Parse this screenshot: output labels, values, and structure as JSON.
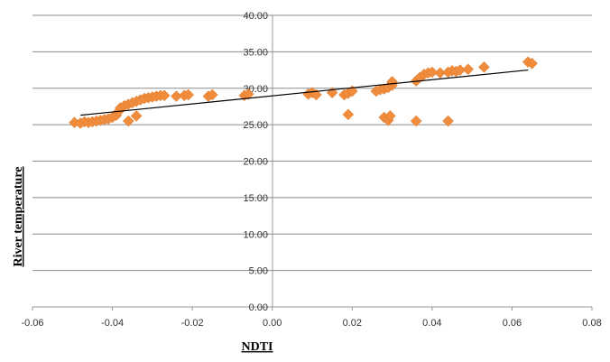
{
  "chart_data": {
    "type": "scatter",
    "xlabel": "NDTI",
    "ylabel": "River temperature",
    "xlim": [
      -0.06,
      0.08
    ],
    "ylim": [
      0,
      40
    ],
    "x_ticks": [
      "-0.06",
      "-0.04",
      "-0.02",
      "0.00",
      "0.02",
      "0.04",
      "0.06",
      "0.08"
    ],
    "y_ticks": [
      "0.00",
      "5.00",
      "10.00",
      "15.00",
      "20.00",
      "25.00",
      "30.00",
      "35.00",
      "40.00"
    ],
    "grid": "horizontal",
    "marker_color": "#f08c3c",
    "trendline_color": "#000000",
    "trendline": {
      "x": [
        -0.048,
        0.064
      ],
      "y": [
        26.3,
        32.5
      ]
    },
    "points": [
      {
        "x": -0.0495,
        "y": 25.3
      },
      {
        "x": -0.048,
        "y": 25.2
      },
      {
        "x": -0.047,
        "y": 25.4
      },
      {
        "x": -0.046,
        "y": 25.3
      },
      {
        "x": -0.045,
        "y": 25.4
      },
      {
        "x": -0.044,
        "y": 25.5
      },
      {
        "x": -0.043,
        "y": 25.6
      },
      {
        "x": -0.042,
        "y": 25.7
      },
      {
        "x": -0.041,
        "y": 25.8
      },
      {
        "x": -0.04,
        "y": 26.0
      },
      {
        "x": -0.039,
        "y": 26.3
      },
      {
        "x": -0.0385,
        "y": 26.8
      },
      {
        "x": -0.038,
        "y": 27.3
      },
      {
        "x": -0.037,
        "y": 27.6
      },
      {
        "x": -0.036,
        "y": 27.8
      },
      {
        "x": -0.035,
        "y": 28.0
      },
      {
        "x": -0.034,
        "y": 28.2
      },
      {
        "x": -0.033,
        "y": 28.4
      },
      {
        "x": -0.032,
        "y": 28.6
      },
      {
        "x": -0.031,
        "y": 28.7
      },
      {
        "x": -0.03,
        "y": 28.8
      },
      {
        "x": -0.029,
        "y": 28.9
      },
      {
        "x": -0.028,
        "y": 29.0
      },
      {
        "x": -0.027,
        "y": 29.0
      },
      {
        "x": -0.024,
        "y": 28.9
      },
      {
        "x": -0.022,
        "y": 29.0
      },
      {
        "x": -0.021,
        "y": 29.1
      },
      {
        "x": -0.016,
        "y": 28.9
      },
      {
        "x": -0.015,
        "y": 29.1
      },
      {
        "x": -0.007,
        "y": 29.0
      },
      {
        "x": -0.006,
        "y": 29.2
      },
      {
        "x": -0.036,
        "y": 25.5
      },
      {
        "x": -0.034,
        "y": 26.2
      },
      {
        "x": 0.009,
        "y": 29.2
      },
      {
        "x": 0.01,
        "y": 29.4
      },
      {
        "x": 0.011,
        "y": 29.1
      },
      {
        "x": 0.015,
        "y": 29.4
      },
      {
        "x": 0.018,
        "y": 29.1
      },
      {
        "x": 0.019,
        "y": 29.3
      },
      {
        "x": 0.02,
        "y": 29.6
      },
      {
        "x": 0.019,
        "y": 26.4
      },
      {
        "x": 0.026,
        "y": 29.6
      },
      {
        "x": 0.027,
        "y": 29.8
      },
      {
        "x": 0.028,
        "y": 29.9
      },
      {
        "x": 0.029,
        "y": 30.1
      },
      {
        "x": 0.03,
        "y": 30.4
      },
      {
        "x": 0.03,
        "y": 30.9
      },
      {
        "x": 0.028,
        "y": 26.0
      },
      {
        "x": 0.029,
        "y": 25.6
      },
      {
        "x": 0.0295,
        "y": 26.2
      },
      {
        "x": 0.036,
        "y": 31.0
      },
      {
        "x": 0.037,
        "y": 31.5
      },
      {
        "x": 0.038,
        "y": 31.9
      },
      {
        "x": 0.039,
        "y": 32.1
      },
      {
        "x": 0.04,
        "y": 32.2
      },
      {
        "x": 0.042,
        "y": 32.1
      },
      {
        "x": 0.044,
        "y": 32.2
      },
      {
        "x": 0.045,
        "y": 32.4
      },
      {
        "x": 0.046,
        "y": 32.3
      },
      {
        "x": 0.047,
        "y": 32.5
      },
      {
        "x": 0.049,
        "y": 32.6
      },
      {
        "x": 0.053,
        "y": 32.9
      },
      {
        "x": 0.064,
        "y": 33.6
      },
      {
        "x": 0.065,
        "y": 33.4
      },
      {
        "x": 0.036,
        "y": 25.5
      },
      {
        "x": 0.044,
        "y": 25.5
      }
    ]
  }
}
